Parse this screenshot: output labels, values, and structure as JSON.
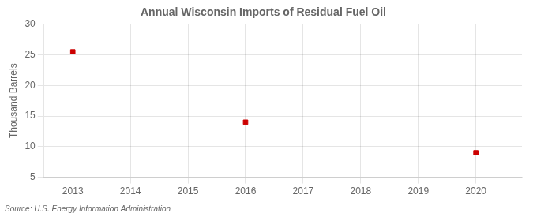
{
  "chart_data": {
    "type": "scatter",
    "title": "Annual Wisconsin Imports of Residual Fuel Oil",
    "y_label": "Thousand Barrels",
    "annotations": [
      "Source: U.S. Energy Information Administration"
    ],
    "x": [
      2013,
      2016,
      2020
    ],
    "values": [
      25.5,
      14.0,
      9.0
    ],
    "color": "#cc0000",
    "marker": "square",
    "xlim": [
      2012.5,
      2020.8
    ],
    "ylim": [
      5,
      30
    ],
    "xticks": [
      2013,
      2014,
      2015,
      2016,
      2017,
      2018,
      2019,
      2020
    ],
    "yticks": [
      5,
      10,
      15,
      20,
      25,
      30
    ],
    "grid": true
  }
}
